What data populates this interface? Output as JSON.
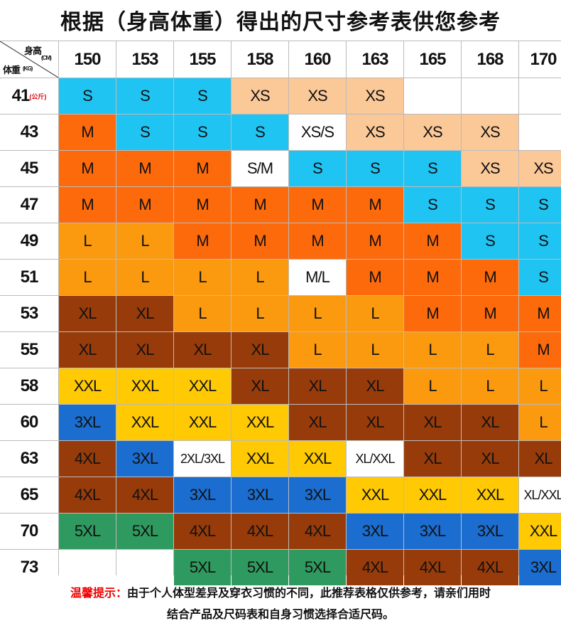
{
  "title": "根据（身高体重）得出的尺寸参考表供您参考",
  "table": {
    "corner": {
      "height": "身高",
      "height_unit": "(CM)",
      "weight": "体重",
      "weight_unit": "(KG)"
    },
    "first_row_unit": "(公斤)",
    "heights": [
      150,
      153,
      155,
      158,
      160,
      163,
      165,
      168,
      170
    ],
    "weights": [
      41,
      43,
      45,
      47,
      49,
      51,
      53,
      55,
      58,
      60,
      63,
      65,
      70,
      73
    ],
    "rows": [
      [
        "S",
        "S",
        "S",
        "XS",
        "XS",
        "XS",
        null,
        null,
        null
      ],
      [
        "M",
        "S",
        "S",
        "S",
        "XS/S",
        "XS",
        "XS",
        "XS",
        null
      ],
      [
        "M",
        "M",
        "M",
        "S/M",
        "S",
        "S",
        "S",
        "XS",
        "XS"
      ],
      [
        "M",
        "M",
        "M",
        "M",
        "M",
        "M",
        "S",
        "S",
        "S"
      ],
      [
        "L",
        "L",
        "M",
        "M",
        "M",
        "M",
        "M",
        "S",
        "S"
      ],
      [
        "L",
        "L",
        "L",
        "L",
        "M/L",
        "M",
        "M",
        "M",
        "S"
      ],
      [
        "XL",
        "XL",
        "L",
        "L",
        "L",
        "L",
        "M",
        "M",
        "M"
      ],
      [
        "XL",
        "XL",
        "XL",
        "XL",
        "L",
        "L",
        "L",
        "L",
        "M"
      ],
      [
        "XXL",
        "XXL",
        "XXL",
        "XL",
        "XL",
        "XL",
        "L",
        "L",
        "L"
      ],
      [
        "3XL",
        "XXL",
        "XXL",
        "XXL",
        "XL",
        "XL",
        "XL",
        "XL",
        "L"
      ],
      [
        "4XL",
        "3XL",
        "2XL/3XL",
        "XXL",
        "XXL",
        "XL/XXL",
        "XL",
        "XL",
        "XL"
      ],
      [
        "4XL",
        "4XL",
        "3XL",
        "3XL",
        "3XL",
        "XXL",
        "XXL",
        "XXL",
        "XL/XXL"
      ],
      [
        "5XL",
        "5XL",
        "4XL",
        "4XL",
        "4XL",
        "3XL",
        "3XL",
        "3XL",
        "XXL"
      ],
      [
        null,
        null,
        "5XL",
        "5XL",
        "5XL",
        "4XL",
        "4XL",
        "4XL",
        "3XL"
      ]
    ],
    "size_colors": {
      "XS": "#fbc898",
      "S": "#20c4f2",
      "M": "#fd6a0c",
      "L": "#fb9a0f",
      "XL": "#983b0a",
      "XXL": "#ffca04",
      "3XL": "#1b6dcf",
      "4XL": "#983b0a",
      "5XL": "#2f9a5f"
    }
  },
  "footer": {
    "label": "温馨提示：",
    "line1": "由于个人体型差异及穿衣习惯的不同，此推荐表格仅供参考，请亲们用时",
    "line2": "结合产品及尺码表和自身习惯选择合适尺码。"
  }
}
